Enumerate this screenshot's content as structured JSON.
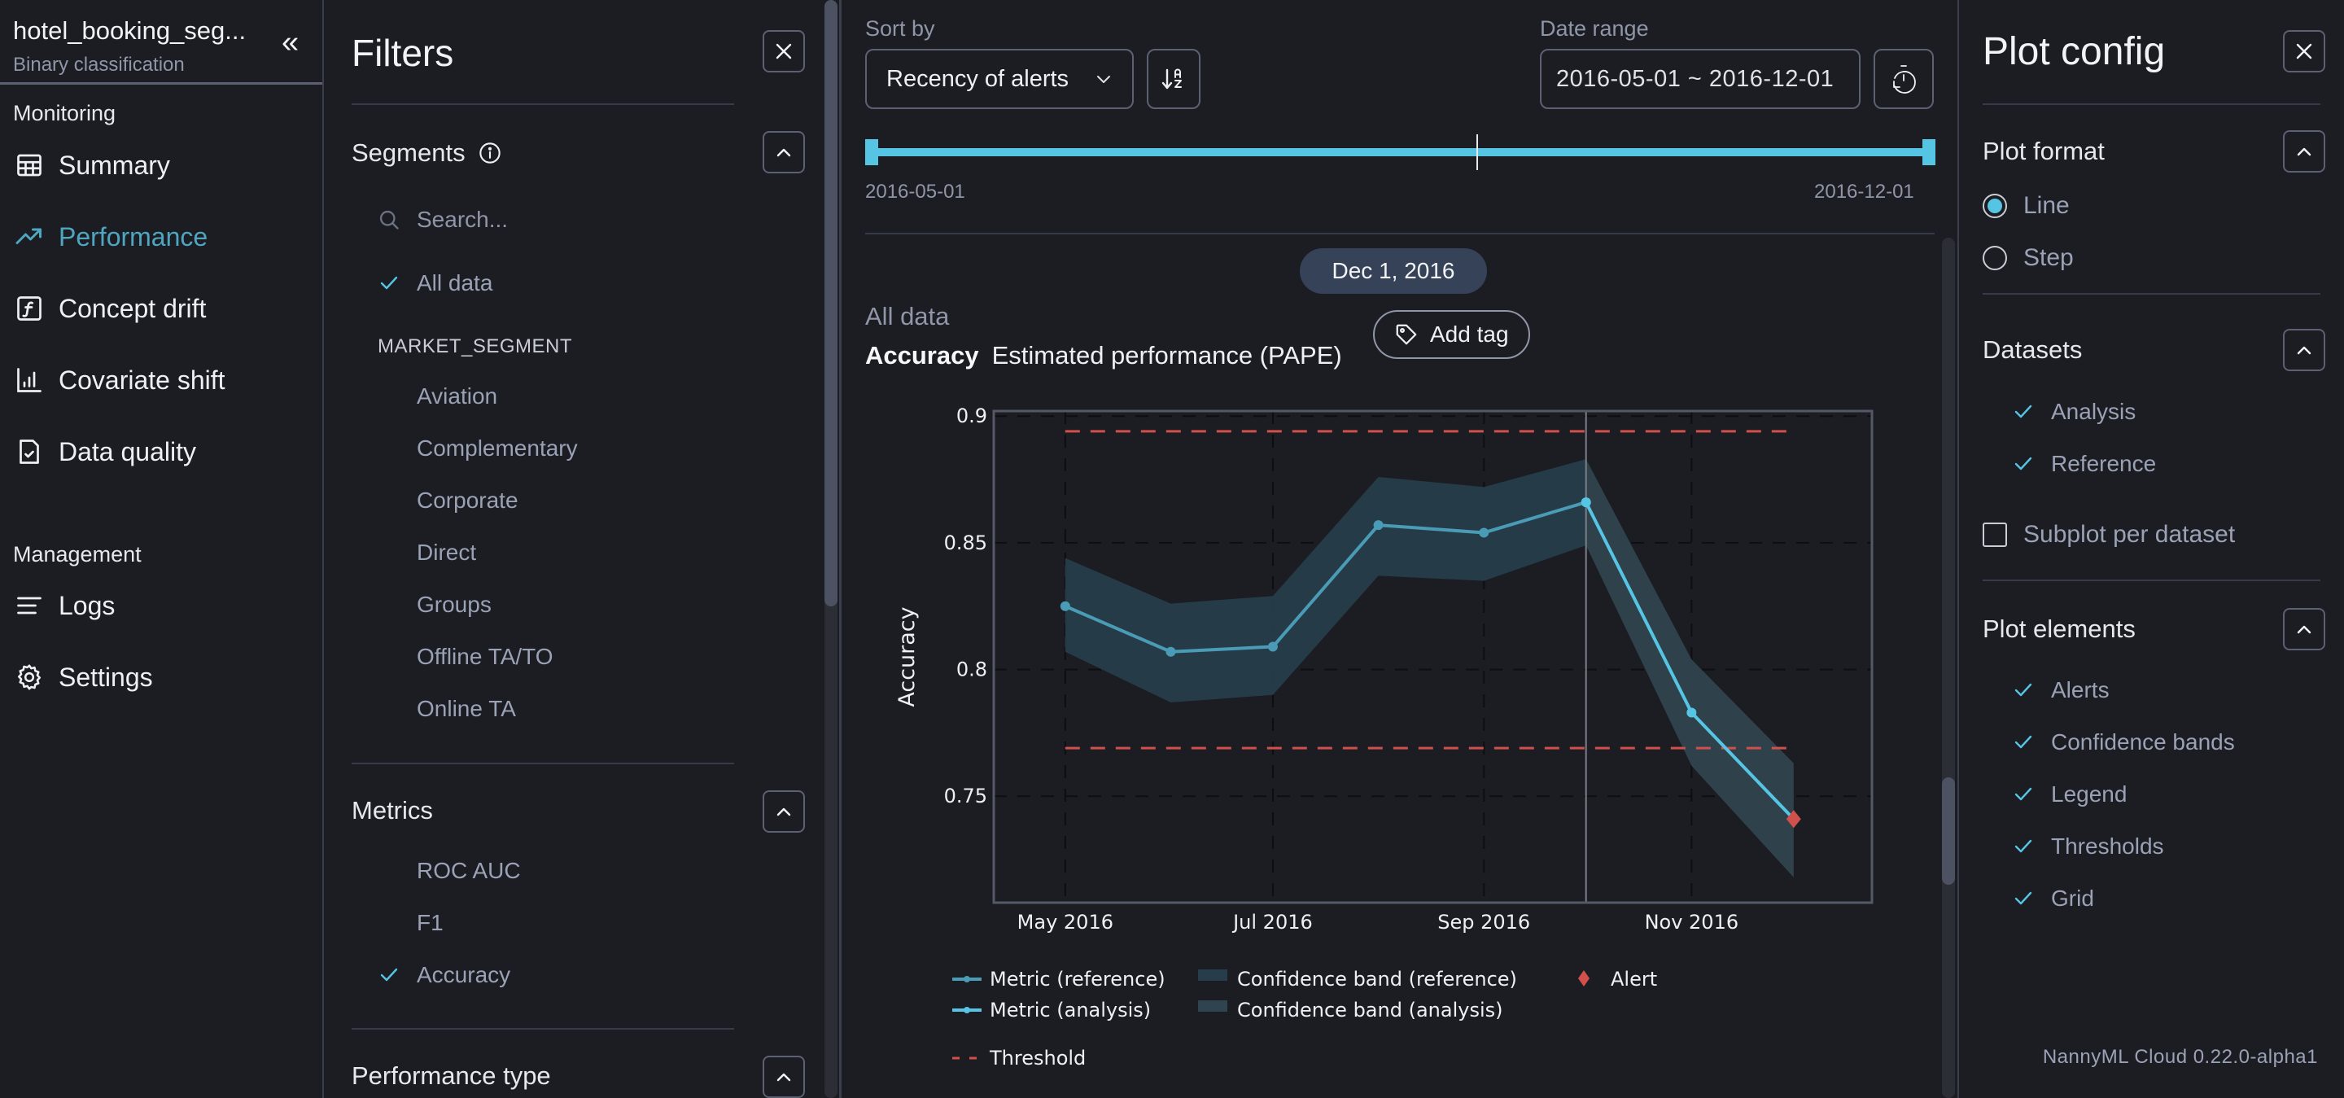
{
  "nav": {
    "model_name": "hotel_booking_seg...",
    "model_type": "Binary classification",
    "collapse_icon": "double-chevron-left-icon",
    "sections": [
      {
        "label": "Monitoring",
        "items": [
          {
            "label": "Summary",
            "icon": "table-icon",
            "active": false
          },
          {
            "label": "Performance",
            "icon": "trending-up-icon",
            "active": true
          },
          {
            "label": "Concept drift",
            "icon": "function-icon",
            "active": false
          },
          {
            "label": "Covariate shift",
            "icon": "bar-chart-icon",
            "active": false
          },
          {
            "label": "Data quality",
            "icon": "file-check-icon",
            "active": false
          }
        ]
      },
      {
        "label": "Management",
        "items": [
          {
            "label": "Logs",
            "icon": "lines-icon",
            "active": false
          },
          {
            "label": "Settings",
            "icon": "gear-icon",
            "active": false
          }
        ]
      }
    ]
  },
  "filters": {
    "title": "Filters",
    "segments": {
      "title": "Segments",
      "search_placeholder": "Search...",
      "all_data": {
        "label": "All data",
        "checked": true
      },
      "group_label": "MARKET_SEGMENT",
      "items": [
        "Aviation",
        "Complementary",
        "Corporate",
        "Direct",
        "Groups",
        "Offline TA/TO",
        "Online TA"
      ]
    },
    "metrics": {
      "title": "Metrics",
      "items": [
        {
          "label": "ROC AUC",
          "checked": false
        },
        {
          "label": "F1",
          "checked": false
        },
        {
          "label": "Accuracy",
          "checked": true
        }
      ]
    },
    "performance_type": {
      "title": "Performance type"
    }
  },
  "toolbar": {
    "sort_by_label": "Sort by",
    "sort_by_value": "Recency of alerts",
    "sort_direction_icon": "sort-alpha-down-icon",
    "date_range_label": "Date range",
    "date_range_value": "2016-05-01 ~ 2016-12-01",
    "reset_icon": "timer-reset-icon",
    "range_start": "2016-05-01",
    "range_end": "2016-12-01"
  },
  "plot_header": {
    "date_pill": "Dec 1, 2016",
    "segment": "All data",
    "metric": "Accuracy",
    "method": "Estimated performance (PAPE)",
    "add_tag": "Add tag"
  },
  "chart_data": {
    "type": "line",
    "title": "Accuracy",
    "xlabel": "",
    "ylabel": "Accuracy",
    "ylim": [
      0.708,
      0.902
    ],
    "xlim": [
      "2016-04-10",
      "2016-12-24"
    ],
    "yticks": [
      0.75,
      0.8,
      0.85,
      0.9
    ],
    "ytick_labels": [
      "0.75",
      "0.8",
      "0.85",
      "0.9"
    ],
    "xticks": [
      "2016-05-01",
      "2016-07-01",
      "2016-09-01",
      "2016-11-01"
    ],
    "xtick_labels": [
      "May 2016",
      "Jul 2016",
      "Sep 2016",
      "Nov 2016"
    ],
    "grid": true,
    "legend_position": "bottom",
    "split_date": "2016-10-01",
    "series": [
      {
        "name": "Metric (reference)",
        "color": "#4a9bb5",
        "x": [
          "2016-05-01",
          "2016-06-01",
          "2016-07-01",
          "2016-08-01",
          "2016-09-01",
          "2016-10-01"
        ],
        "values": [
          0.825,
          0.807,
          0.809,
          0.857,
          0.854,
          0.866
        ]
      },
      {
        "name": "Metric (analysis)",
        "color": "#55c5e3",
        "x": [
          "2016-10-01",
          "2016-11-01",
          "2016-12-01"
        ],
        "values": [
          0.866,
          0.783,
          0.741
        ]
      }
    ],
    "bands": [
      {
        "name": "Confidence band (reference)",
        "color": "#273d4b",
        "x": [
          "2016-05-01",
          "2016-06-01",
          "2016-07-01",
          "2016-08-01",
          "2016-09-01",
          "2016-10-01"
        ],
        "upper": [
          0.844,
          0.826,
          0.829,
          0.876,
          0.872,
          0.883
        ],
        "lower": [
          0.807,
          0.787,
          0.79,
          0.837,
          0.835,
          0.849
        ]
      },
      {
        "name": "Confidence band (analysis)",
        "color": "#30444f",
        "x": [
          "2016-10-01",
          "2016-11-01",
          "2016-12-01"
        ],
        "upper": [
          0.883,
          0.804,
          0.763
        ],
        "lower": [
          0.849,
          0.762,
          0.718
        ]
      }
    ],
    "thresholds": {
      "name": "Threshold",
      "upper": 0.894,
      "lower": 0.769,
      "x_start": "2016-05-01",
      "x_end": "2016-12-01",
      "color": "#d0504b"
    },
    "alerts": [
      {
        "name": "Alert",
        "x": "2016-12-01",
        "value": 0.741,
        "color": "#d0504b"
      }
    ],
    "legend": [
      {
        "label": "Metric (reference)",
        "kind": "line",
        "color": "#4a9bb5"
      },
      {
        "label": "Confidence band (reference)",
        "kind": "band",
        "color": "#273d4b"
      },
      {
        "label": "Alert",
        "kind": "diamond",
        "color": "#d0504b"
      },
      {
        "label": "Metric (analysis)",
        "kind": "line",
        "color": "#55c5e3"
      },
      {
        "label": "Confidence band (analysis)",
        "kind": "band",
        "color": "#30444f"
      },
      {
        "label": "Threshold",
        "kind": "dash",
        "color": "#d0504b"
      }
    ]
  },
  "plot_config": {
    "title": "Plot config",
    "plot_format": {
      "title": "Plot format",
      "options": [
        {
          "label": "Line",
          "selected": true
        },
        {
          "label": "Step",
          "selected": false
        }
      ]
    },
    "datasets": {
      "title": "Datasets",
      "items": [
        {
          "label": "Analysis",
          "checked": true
        },
        {
          "label": "Reference",
          "checked": true
        }
      ],
      "subplot": {
        "label": "Subplot per dataset",
        "checked": false
      }
    },
    "plot_elements": {
      "title": "Plot elements",
      "items": [
        {
          "label": "Alerts",
          "checked": true
        },
        {
          "label": "Confidence bands",
          "checked": true
        },
        {
          "label": "Legend",
          "checked": true
        },
        {
          "label": "Thresholds",
          "checked": true
        },
        {
          "label": "Grid",
          "checked": true
        }
      ]
    },
    "version": "NannyML Cloud 0.22.0-alpha1"
  },
  "colors": {
    "accent": "#55c5e3",
    "accent_muted": "#4fa6c0",
    "alert": "#d0504b",
    "background": "#1c1c23"
  }
}
